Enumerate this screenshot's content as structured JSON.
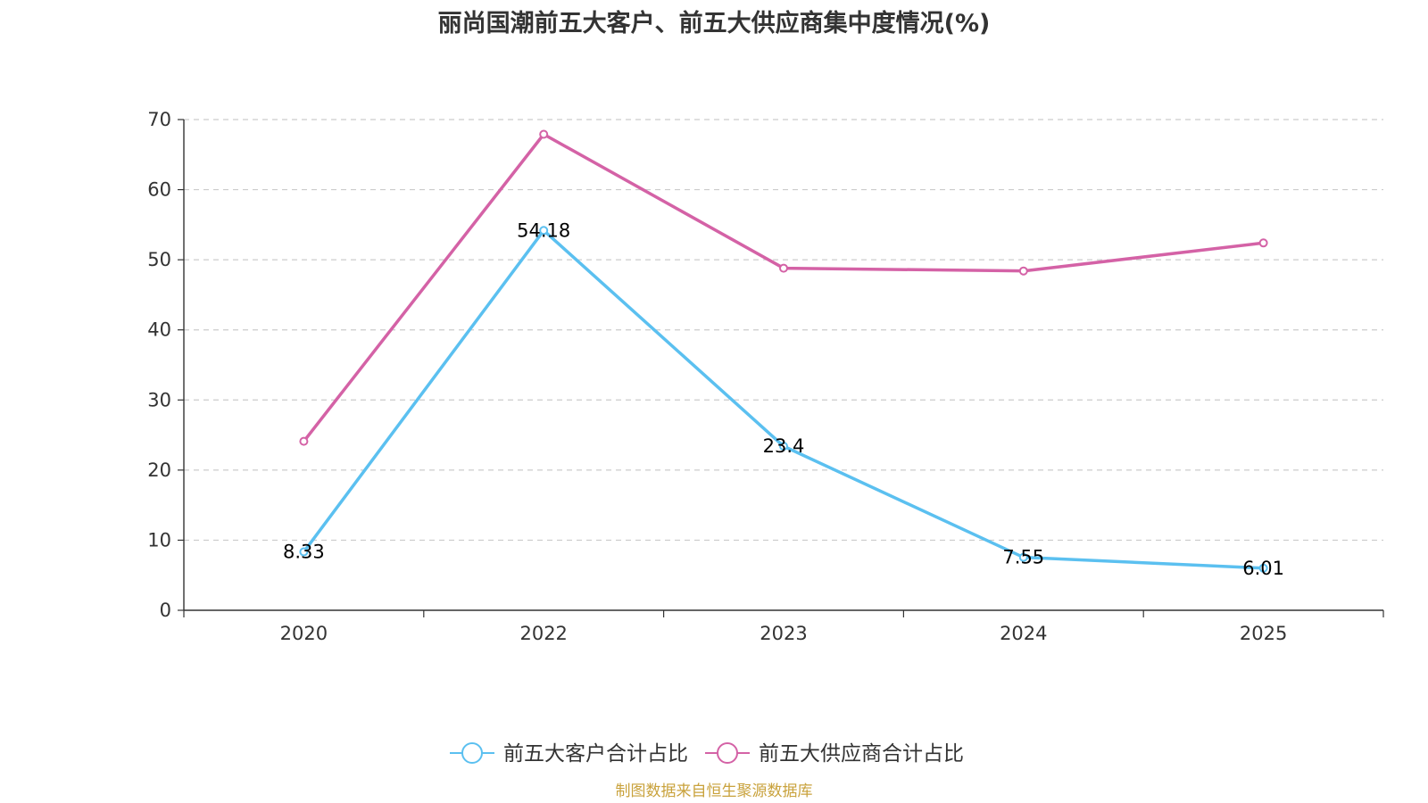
{
  "title": "丽尚国潮前五大客户、前五大供应商集中度情况(%)",
  "source": "制图数据来自恒生聚源数据库",
  "chart_data": {
    "type": "line",
    "title": "丽尚国潮前五大客户、前五大供应商集中度情况(%)",
    "categories": [
      "2020",
      "2022",
      "2023",
      "2024",
      "2025"
    ],
    "ylim": [
      0,
      70
    ],
    "yticks": [
      0,
      10,
      20,
      30,
      40,
      50,
      60,
      70
    ],
    "grid": true,
    "legend_position": "bottom-center",
    "series": [
      {
        "name": "前五大客户合计占比",
        "color": "#5bc0f0",
        "values": [
          8.33,
          54.18,
          23.4,
          7.55,
          6.01
        ],
        "labels": [
          "8.33",
          "54.18",
          "23.4",
          "7.55",
          "6.01"
        ]
      },
      {
        "name": "前五大供应商合计占比",
        "color": "#d462a6",
        "values": [
          24.1,
          67.9,
          48.8,
          48.4,
          52.4
        ]
      }
    ]
  }
}
